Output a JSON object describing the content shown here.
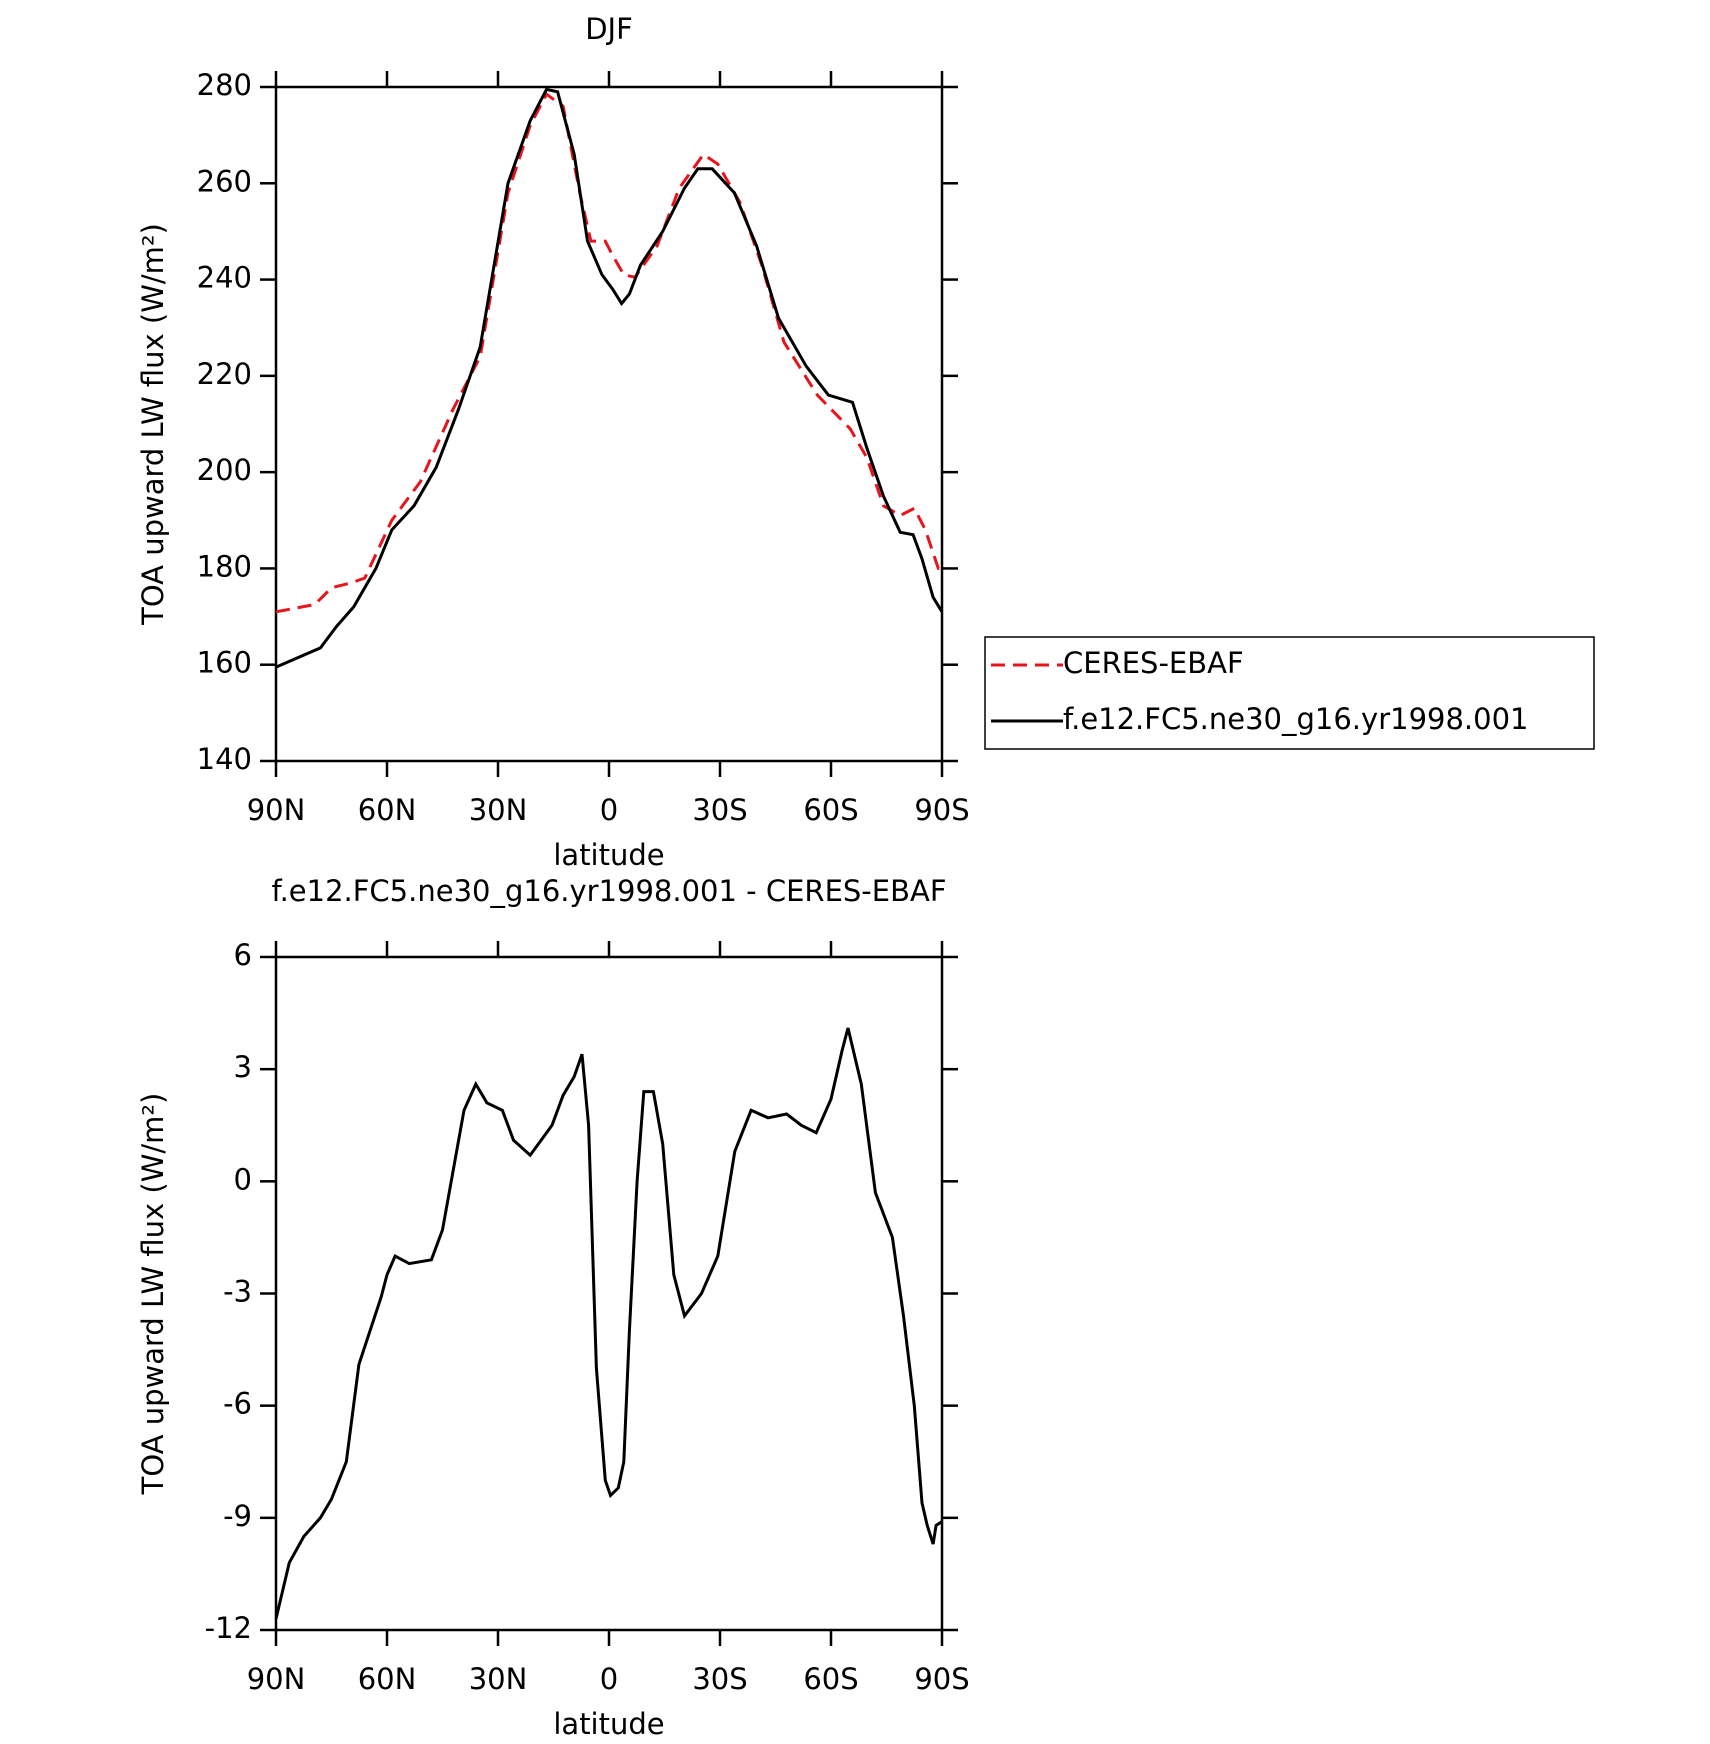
{
  "chart_data": [
    {
      "type": "line",
      "title": "DJF",
      "xlabel": "latitude",
      "ylabel": "TOA upward LW flux (W/m²)",
      "xlim": [
        90,
        -90
      ],
      "xticks": [
        {
          "value": 90,
          "label": "90N"
        },
        {
          "value": 60,
          "label": "60N"
        },
        {
          "value": 30,
          "label": "30N"
        },
        0,
        {
          "value": -30,
          "label": "30S"
        },
        {
          "value": -60,
          "label": "60S"
        },
        {
          "value": -90,
          "label": "90S"
        }
      ],
      "ylim": [
        140,
        280
      ],
      "yticks": [
        140,
        160,
        180,
        200,
        220,
        240,
        260,
        280
      ],
      "series": [
        {
          "name": "CERES-EBAF",
          "color": "#e8141b",
          "linestyle": "dashed",
          "x": [
            90,
            79.5,
            75,
            69.7,
            66,
            58.7,
            51,
            42.2,
            34.8,
            27.3,
            21.3,
            16.9,
            12.4,
            7.9,
            4.9,
            1,
            -1,
            -4,
            -7,
            -13,
            -19,
            -25.5,
            -29.4,
            -35.4,
            -41.3,
            -47.3,
            -56.3,
            -65.2,
            -69.7,
            -74.2,
            -78.7,
            -82.5,
            -85.5,
            -89,
            -90
          ],
          "values": [
            171,
            172.5,
            176,
            177,
            178,
            190,
            198,
            213,
            224,
            258,
            272,
            278.5,
            276,
            258,
            248,
            248,
            245,
            241,
            240.5,
            247,
            259,
            266,
            264,
            256,
            243,
            227,
            216,
            209,
            203,
            193,
            191,
            192.5,
            188,
            180,
            180
          ]
        },
        {
          "name": "f.e12.FC5.ne30_g16.yr1998.001",
          "color": "#000000",
          "linestyle": "solid",
          "x": [
            90,
            78,
            73.6,
            69,
            63,
            58.7,
            52.7,
            46.7,
            40.7,
            34.8,
            27.3,
            21.3,
            16.9,
            13.9,
            9.4,
            5.8,
            1.9,
            -1,
            -3.4,
            -5.5,
            -8.5,
            -14.5,
            -20.4,
            -24,
            -27.9,
            -33.9,
            -39.9,
            -45.8,
            -53.3,
            -59.3,
            -65.8,
            -69.7,
            -74.2,
            -78.7,
            -82.2,
            -84.6,
            -87.6,
            -90
          ],
          "values": [
            159.5,
            163.5,
            168,
            172,
            180,
            188,
            193,
            201,
            213,
            226,
            260,
            273,
            279.5,
            279,
            266,
            248,
            241,
            238,
            235,
            237,
            243,
            250,
            259,
            263,
            263,
            258,
            247,
            232,
            222,
            216,
            214.5,
            205,
            195,
            187.5,
            187,
            182,
            174,
            171
          ]
        }
      ]
    },
    {
      "type": "line",
      "title": "f.e12.FC5.ne30_g16.yr1998.001 - CERES-EBAF",
      "xlabel": "latitude",
      "ylabel": "TOA upward LW flux (W/m²)",
      "xlim": [
        90,
        -90
      ],
      "xticks": [
        {
          "value": 90,
          "label": "90N"
        },
        {
          "value": 60,
          "label": "60N"
        },
        {
          "value": 30,
          "label": "30N"
        },
        0,
        {
          "value": -30,
          "label": "30S"
        },
        {
          "value": -60,
          "label": "60S"
        },
        {
          "value": -90,
          "label": "90S"
        }
      ],
      "ylim": [
        -12,
        6
      ],
      "yticks": [
        -12,
        -9,
        -6,
        -3,
        0,
        3,
        6
      ],
      "series": [
        {
          "color": "#000000",
          "linestyle": "solid",
          "x": [
            90,
            86.4,
            82.5,
            78,
            75,
            71,
            67.6,
            61.6,
            60,
            57.8,
            54,
            48,
            45,
            39.2,
            36,
            33,
            28.8,
            25.8,
            21.3,
            15.4,
            12.4,
            9.4,
            7.3,
            5.5,
            3.4,
            1,
            -0.4,
            -2.5,
            -4,
            -5.5,
            -7.6,
            -9.4,
            -12,
            -14.5,
            -17.5,
            -20.4,
            -25,
            -29.4,
            -34,
            -38.4,
            -43,
            -48,
            -52,
            -56,
            -60,
            -63,
            -64.6,
            -68.2,
            -72,
            -76.6,
            -79.6,
            -82.5,
            -84.6,
            -86,
            -87.6,
            -88.4,
            -90
          ],
          "values": [
            -11.7,
            -10.2,
            -9.5,
            -9.0,
            -8.5,
            -7.5,
            -4.9,
            -3.1,
            -2.5,
            -2.0,
            -2.2,
            -2.1,
            -1.3,
            1.9,
            2.6,
            2.1,
            1.9,
            1.1,
            0.7,
            1.5,
            2.3,
            2.8,
            3.4,
            1.5,
            -5,
            -8.0,
            -8.4,
            -8.2,
            -7.5,
            -4,
            0,
            2.4,
            2.4,
            1,
            -2.5,
            -3.6,
            -3.0,
            -2.0,
            0.8,
            1.9,
            1.7,
            1.8,
            1.5,
            1.3,
            2.2,
            3.5,
            4.1,
            2.6,
            -0.3,
            -1.5,
            -3.6,
            -6,
            -8.6,
            -9.2,
            -9.7,
            -9.2,
            -9.1
          ]
        }
      ]
    }
  ]
}
